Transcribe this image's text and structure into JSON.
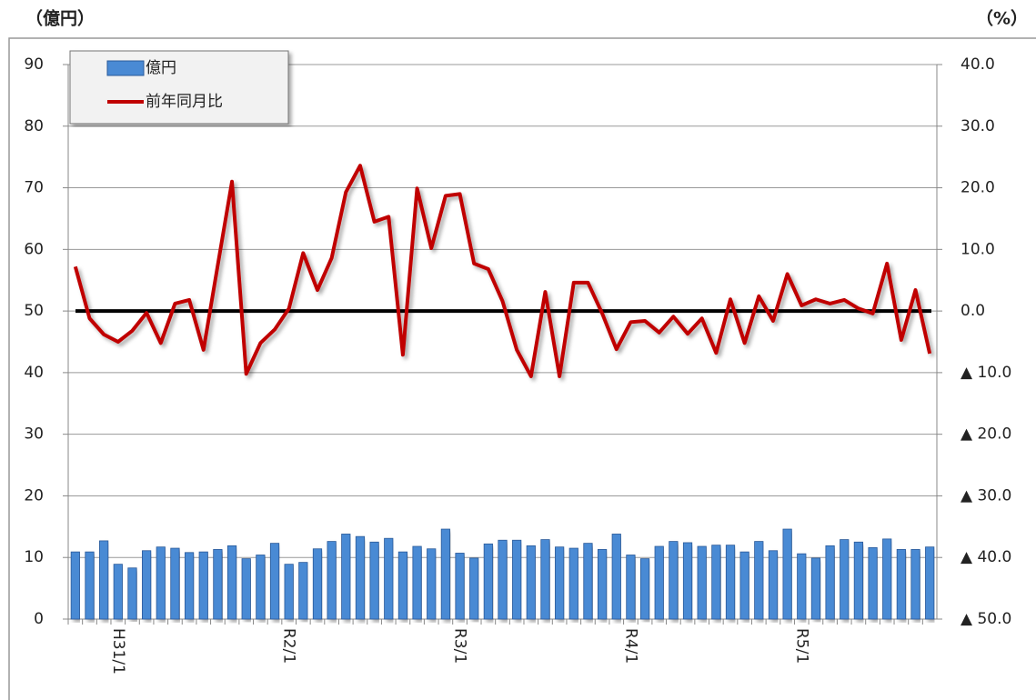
{
  "chart_data": {
    "type": "bar_line",
    "y_unit": "（億円）",
    "y2_unit": "（%）",
    "categories": [
      null,
      null,
      null,
      "H31/1",
      null,
      null,
      null,
      null,
      null,
      null,
      null,
      null,
      null,
      null,
      null,
      "R2/1",
      null,
      null,
      null,
      null,
      null,
      null,
      null,
      null,
      null,
      null,
      null,
      "R3/1",
      null,
      null,
      null,
      null,
      null,
      null,
      null,
      null,
      null,
      null,
      null,
      "R4/1",
      null,
      null,
      null,
      null,
      null,
      null,
      null,
      null,
      null,
      null,
      null,
      "R5/1",
      null,
      null,
      null,
      null,
      null,
      null,
      null,
      null,
      null
    ],
    "series": [
      {
        "name": "億円",
        "type": "bar",
        "axis": "y",
        "color": "#4a8ad4",
        "values": [
          10.9,
          10.9,
          12.7,
          8.9,
          8.3,
          11.1,
          11.7,
          11.5,
          10.8,
          10.9,
          11.3,
          11.9,
          9.8,
          10.4,
          12.3,
          8.9,
          9.2,
          11.4,
          12.6,
          13.8,
          13.4,
          12.5,
          13.1,
          10.9,
          11.8,
          11.4,
          14.6,
          10.7,
          9.9,
          12.2,
          12.8,
          12.8,
          11.9,
          12.9,
          11.7,
          11.5,
          12.3,
          11.3,
          13.8,
          10.4,
          9.8,
          11.8,
          12.6,
          12.4,
          11.8,
          12.0,
          12.0,
          10.9,
          12.6,
          11.1,
          14.6,
          10.6,
          9.9,
          11.9,
          12.9,
          12.5,
          11.6,
          13.0,
          11.3,
          11.3,
          11.7
        ]
      },
      {
        "name": "前年同月比",
        "type": "line",
        "axis": "y2",
        "color": "#c00000",
        "values": [
          7.2,
          -1.2,
          -3.8,
          -5.0,
          -3.2,
          -0.3,
          -5.2,
          1.2,
          1.8,
          -6.3,
          7.4,
          21.0,
          -10.2,
          -5.2,
          -3.0,
          0.4,
          9.4,
          3.4,
          8.6,
          19.3,
          23.6,
          14.5,
          15.3,
          -7.1,
          19.9,
          10.2,
          18.7,
          19.0,
          7.7,
          6.8,
          1.6,
          -6.3,
          -10.6,
          3.1,
          -10.6,
          4.6,
          4.6,
          -0.4,
          -6.2,
          -1.8,
          -1.6,
          -3.5,
          -0.9,
          -3.7,
          -1.2,
          -6.8,
          1.9,
          -5.2,
          2.4,
          -1.6,
          6.0,
          0.9,
          1.9,
          1.2,
          1.8,
          0.4,
          -0.4,
          7.7,
          -4.7,
          3.4,
          -6.9
        ]
      }
    ],
    "ylim": [
      0,
      90
    ],
    "yticks": [
      0,
      10,
      20,
      30,
      40,
      50,
      60,
      70,
      80,
      90
    ],
    "y2lim": [
      -50,
      40
    ],
    "y2ticks": [
      {
        "value": -50,
        "label": "▲ 50.0"
      },
      {
        "value": -40,
        "label": "▲ 40.0"
      },
      {
        "value": -30,
        "label": "▲ 30.0"
      },
      {
        "value": -20,
        "label": "▲ 20.0"
      },
      {
        "value": -10,
        "label": "▲ 10.0"
      },
      {
        "value": 0,
        "label": "0.0"
      },
      {
        "value": 10,
        "label": "10.0"
      },
      {
        "value": 20,
        "label": "20.0"
      },
      {
        "value": 30,
        "label": "30.0"
      },
      {
        "value": 40,
        "label": "40.0"
      }
    ],
    "grid": true,
    "legend": "top-left"
  }
}
